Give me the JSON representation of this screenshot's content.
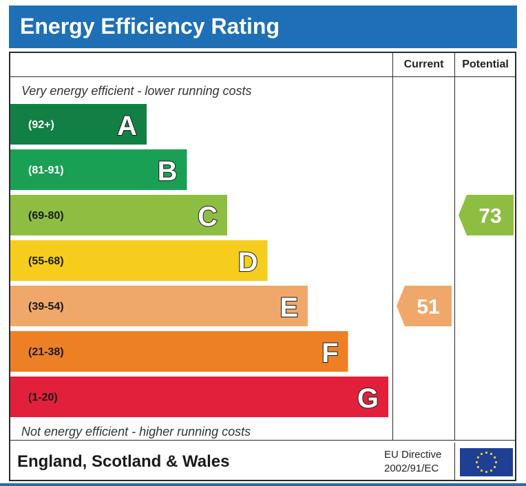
{
  "header": {
    "title": "Energy Efficiency Rating"
  },
  "columns": {
    "current": "Current",
    "potential": "Potential"
  },
  "captions": {
    "top": "Very energy efficient - lower running costs",
    "bottom": "Not energy efficient - higher running costs"
  },
  "footer": {
    "region": "England, Scotland & Wales",
    "directive_line1": "EU Directive",
    "directive_line2": "2002/91/EC",
    "flag_icon": "eu-flag-icon"
  },
  "chart_data": {
    "type": "bar",
    "title": "Energy Efficiency Rating",
    "bands": [
      {
        "letter": "A",
        "range": "(92+)",
        "color": "#128045"
      },
      {
        "letter": "B",
        "range": "(81-91)",
        "color": "#1aa055"
      },
      {
        "letter": "C",
        "range": "(69-80)",
        "color": "#8dbe42"
      },
      {
        "letter": "D",
        "range": "(55-68)",
        "color": "#f6cd1c"
      },
      {
        "letter": "E",
        "range": "(39-54)",
        "color": "#f0a86a"
      },
      {
        "letter": "F",
        "range": "(21-38)",
        "color": "#ed8025"
      },
      {
        "letter": "G",
        "range": "(1-20)",
        "color": "#e3203b"
      }
    ],
    "ratings": {
      "current": {
        "value": 51,
        "band": "E",
        "color": "#f0a86a"
      },
      "potential": {
        "value": 73,
        "band": "C",
        "color": "#8dbe42"
      }
    }
  }
}
